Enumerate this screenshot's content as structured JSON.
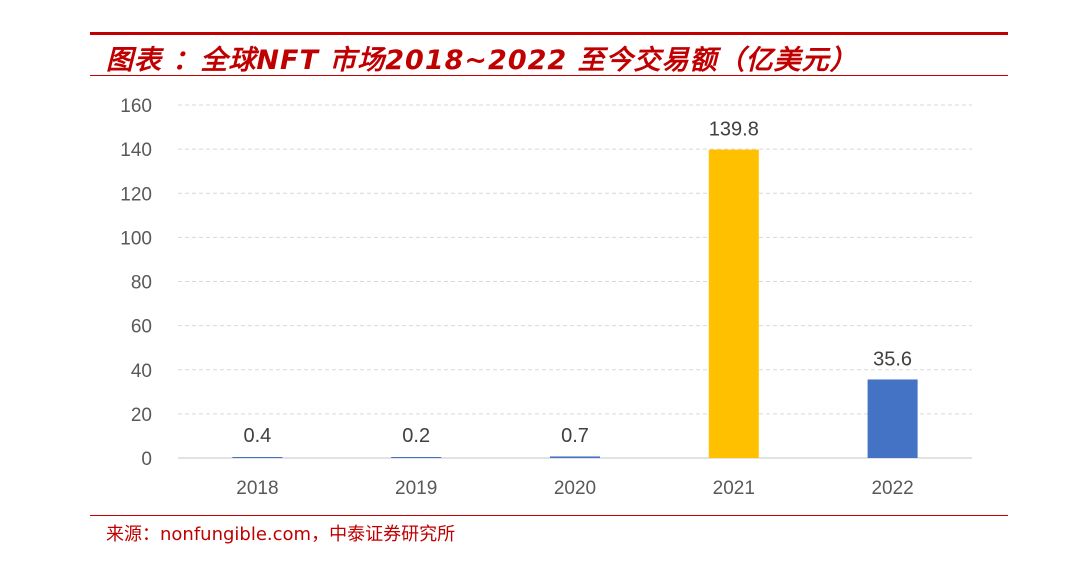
{
  "title": "图表 ：全球NFT 市场2018~2022 至今交易额（亿美元）",
  "source": "来源：nonfungible.com，中泰证券研究所",
  "colors": {
    "accent": "#c00000",
    "default_bar": "#4472c4",
    "highlight_bar": "#ffc000",
    "text": "#595959",
    "grid": "#d9d9d9"
  },
  "chart_data": {
    "type": "bar",
    "title": "全球NFT 市场2018~2022 至今交易额（亿美元）",
    "xlabel": "",
    "ylabel": "",
    "categories": [
      "2018",
      "2019",
      "2020",
      "2021",
      "2022"
    ],
    "values": [
      0.4,
      0.2,
      0.7,
      139.8,
      35.6
    ],
    "value_labels": [
      "0.4",
      "0.2",
      "0.7",
      "139.8",
      "35.6"
    ],
    "bar_colors": [
      "#4472c4",
      "#4472c4",
      "#4472c4",
      "#ffc000",
      "#4472c4"
    ],
    "ylim": [
      0,
      160
    ],
    "yticks": [
      "0",
      "20",
      "40",
      "60",
      "80",
      "100",
      "120",
      "140",
      "160"
    ],
    "grid": true,
    "legend": "none"
  }
}
